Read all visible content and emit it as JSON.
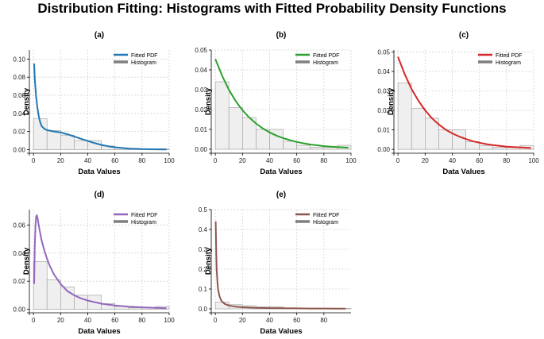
{
  "figure_title": "Distribution Fitting: Histograms with Fitted Probability Density Functions",
  "colors": {
    "hist_fill": "#efefef",
    "hist_edge": "#9a9a9a",
    "grid": "#d3d3d3",
    "legend_hist": "#7f7f7f"
  },
  "chart_data": [
    {
      "panel": "(a)",
      "type": "bar+line",
      "title": "(a)",
      "xlabel": "Data Values",
      "ylabel": "Density",
      "xlim": [
        -3,
        100
      ],
      "ylim": [
        -0.004,
        0.11
      ],
      "xticks": [
        0,
        20,
        40,
        60,
        80,
        100
      ],
      "yticks": [
        0.0,
        0.02,
        0.04,
        0.06,
        0.08,
        0.1
      ],
      "ytick_labels": [
        "0.00",
        "0.02",
        "0.04",
        "0.06",
        "0.08",
        "0.10"
      ],
      "legend": [
        "Fitted PDF",
        "Histogram"
      ],
      "legend_position": "top-right",
      "line_color": "#1f77b4",
      "histogram": {
        "bin_edges": [
          0,
          10,
          20,
          30,
          40,
          50,
          60,
          70,
          80,
          90,
          100
        ],
        "density": [
          0.034,
          0.021,
          0.016,
          0.01,
          0.01,
          0.004,
          0.002,
          0.001,
          0.001,
          0.001
        ]
      },
      "pdf": {
        "x": [
          0.5,
          1,
          2,
          3,
          4,
          5,
          6,
          8,
          10,
          15,
          20,
          25,
          30,
          35,
          40,
          45,
          50,
          55,
          60,
          70,
          80,
          90,
          98
        ],
        "y": [
          0.095,
          0.078,
          0.058,
          0.045,
          0.036,
          0.03,
          0.026,
          0.023,
          0.0215,
          0.02,
          0.019,
          0.017,
          0.0145,
          0.012,
          0.0095,
          0.0072,
          0.0052,
          0.0037,
          0.0026,
          0.0012,
          0.0006,
          0.0003,
          0.0002
        ]
      }
    },
    {
      "panel": "(b)",
      "type": "bar+line",
      "title": "(b)",
      "xlabel": "Data Values",
      "ylabel": "Density",
      "xlim": [
        -3,
        100
      ],
      "ylim": [
        -0.002,
        0.05
      ],
      "xticks": [
        0,
        20,
        40,
        60,
        80,
        100
      ],
      "yticks": [
        0.0,
        0.01,
        0.02,
        0.03,
        0.04,
        0.05
      ],
      "ytick_labels": [
        "0.00",
        "0.01",
        "0.02",
        "0.03",
        "0.04",
        "0.05"
      ],
      "legend": [
        "Fitted PDF",
        "Histogram"
      ],
      "legend_position": "top-right",
      "line_color": "#2ca02c",
      "histogram": {
        "bin_edges": [
          0,
          10,
          20,
          30,
          40,
          50,
          60,
          70,
          80,
          90,
          100
        ],
        "density": [
          0.034,
          0.021,
          0.016,
          0.01,
          0.01,
          0.004,
          0.002,
          0.001,
          0.001,
          0.002
        ]
      },
      "pdf": {
        "x": [
          0,
          5,
          10,
          15,
          20,
          25,
          30,
          35,
          40,
          45,
          50,
          55,
          60,
          65,
          70,
          75,
          80,
          85,
          90,
          95,
          98
        ],
        "y": [
          0.0455,
          0.037,
          0.03,
          0.0243,
          0.0197,
          0.016,
          0.013,
          0.0105,
          0.0085,
          0.0069,
          0.0056,
          0.0046,
          0.0037,
          0.003,
          0.0024,
          0.002,
          0.0016,
          0.0013,
          0.0011,
          0.0009,
          0.0008
        ]
      }
    },
    {
      "panel": "(c)",
      "type": "bar+line",
      "title": "(c)",
      "xlabel": "Data Values",
      "ylabel": "Density",
      "xlim": [
        -3,
        100
      ],
      "ylim": [
        -0.002,
        0.051
      ],
      "xticks": [
        0,
        20,
        40,
        60,
        80,
        100
      ],
      "yticks": [
        0.0,
        0.01,
        0.02,
        0.03,
        0.04,
        0.05
      ],
      "ytick_labels": [
        "0.00",
        "0.01",
        "0.02",
        "0.03",
        "0.04",
        "0.05"
      ],
      "legend": [
        "Fitted PDF",
        "Histogram"
      ],
      "legend_position": "top-right",
      "line_color": "#d62728",
      "histogram": {
        "bin_edges": [
          0,
          10,
          20,
          30,
          40,
          50,
          60,
          70,
          80,
          90,
          100
        ],
        "density": [
          0.034,
          0.021,
          0.016,
          0.01,
          0.01,
          0.004,
          0.002,
          0.001,
          0.001,
          0.002
        ]
      },
      "pdf": {
        "x": [
          0,
          2,
          5,
          10,
          15,
          20,
          25,
          30,
          35,
          40,
          45,
          50,
          55,
          60,
          65,
          70,
          75,
          80,
          85,
          90,
          95,
          98
        ],
        "y": [
          0.0475,
          0.044,
          0.0385,
          0.031,
          0.025,
          0.02,
          0.016,
          0.0128,
          0.0102,
          0.0082,
          0.0066,
          0.0053,
          0.0042,
          0.0034,
          0.0027,
          0.0022,
          0.0018,
          0.0014,
          0.0012,
          0.001,
          0.0008,
          0.0007
        ]
      }
    },
    {
      "panel": "(d)",
      "type": "bar+line",
      "title": "(d)",
      "xlabel": "Data Values",
      "ylabel": "Density",
      "xlim": [
        -3,
        100
      ],
      "ylim": [
        -0.0025,
        0.071
      ],
      "xticks": [
        0,
        20,
        40,
        60,
        80,
        100
      ],
      "yticks": [
        0.0,
        0.02,
        0.04,
        0.06
      ],
      "ytick_labels": [
        "0.00",
        "0.02",
        "0.04",
        "0.06"
      ],
      "legend": [
        "Fitted PDF",
        "Histogram"
      ],
      "legend_position": "top-right",
      "line_color": "#9467bd",
      "histogram": {
        "bin_edges": [
          0,
          10,
          20,
          30,
          40,
          50,
          60,
          70,
          80,
          90,
          100
        ],
        "density": [
          0.034,
          0.021,
          0.016,
          0.01,
          0.01,
          0.004,
          0.002,
          0.001,
          0.001,
          0.002
        ]
      },
      "pdf": {
        "x": [
          0.5,
          1,
          1.5,
          2,
          2.5,
          3,
          4,
          5,
          6,
          8,
          10,
          12,
          15,
          20,
          25,
          30,
          35,
          40,
          50,
          60,
          70,
          80,
          90,
          98
        ],
        "y": [
          0.018,
          0.045,
          0.06,
          0.066,
          0.067,
          0.065,
          0.059,
          0.054,
          0.049,
          0.042,
          0.036,
          0.031,
          0.025,
          0.018,
          0.013,
          0.01,
          0.0078,
          0.0062,
          0.004,
          0.0027,
          0.0019,
          0.0014,
          0.001,
          0.0008
        ]
      }
    },
    {
      "panel": "(e)",
      "type": "bar+line",
      "title": "(e)",
      "xlabel": "Data Values",
      "ylabel": "Density",
      "xlim": [
        -3,
        100
      ],
      "ylim": [
        -0.02,
        0.5
      ],
      "xticks": [
        0,
        20,
        40,
        60,
        80
      ],
      "yticks": [
        0.0,
        0.1,
        0.2,
        0.3,
        0.4,
        0.5
      ],
      "ytick_labels": [
        "0.0",
        "0.1",
        "0.2",
        "0.3",
        "0.4",
        "0.5"
      ],
      "legend": [
        "Fitted PDF",
        "Histogram"
      ],
      "legend_position": "top-right",
      "line_color": "#8c564b",
      "histogram": {
        "bin_edges": [
          0,
          10,
          20,
          30,
          40,
          50,
          60,
          70,
          80,
          90,
          100
        ],
        "density": [
          0.034,
          0.021,
          0.016,
          0.01,
          0.01,
          0.004,
          0.002,
          0.001,
          0.001,
          0.002
        ]
      },
      "pdf": {
        "x": [
          0.3,
          0.6,
          1,
          1.5,
          2,
          3,
          4,
          5,
          7,
          10,
          15,
          20,
          30,
          40,
          50,
          60,
          70,
          80,
          90,
          96
        ],
        "y": [
          0.44,
          0.3,
          0.2,
          0.14,
          0.1,
          0.065,
          0.047,
          0.036,
          0.025,
          0.017,
          0.011,
          0.008,
          0.005,
          0.0035,
          0.0027,
          0.0022,
          0.0018,
          0.0015,
          0.0013,
          0.0012
        ]
      }
    }
  ]
}
